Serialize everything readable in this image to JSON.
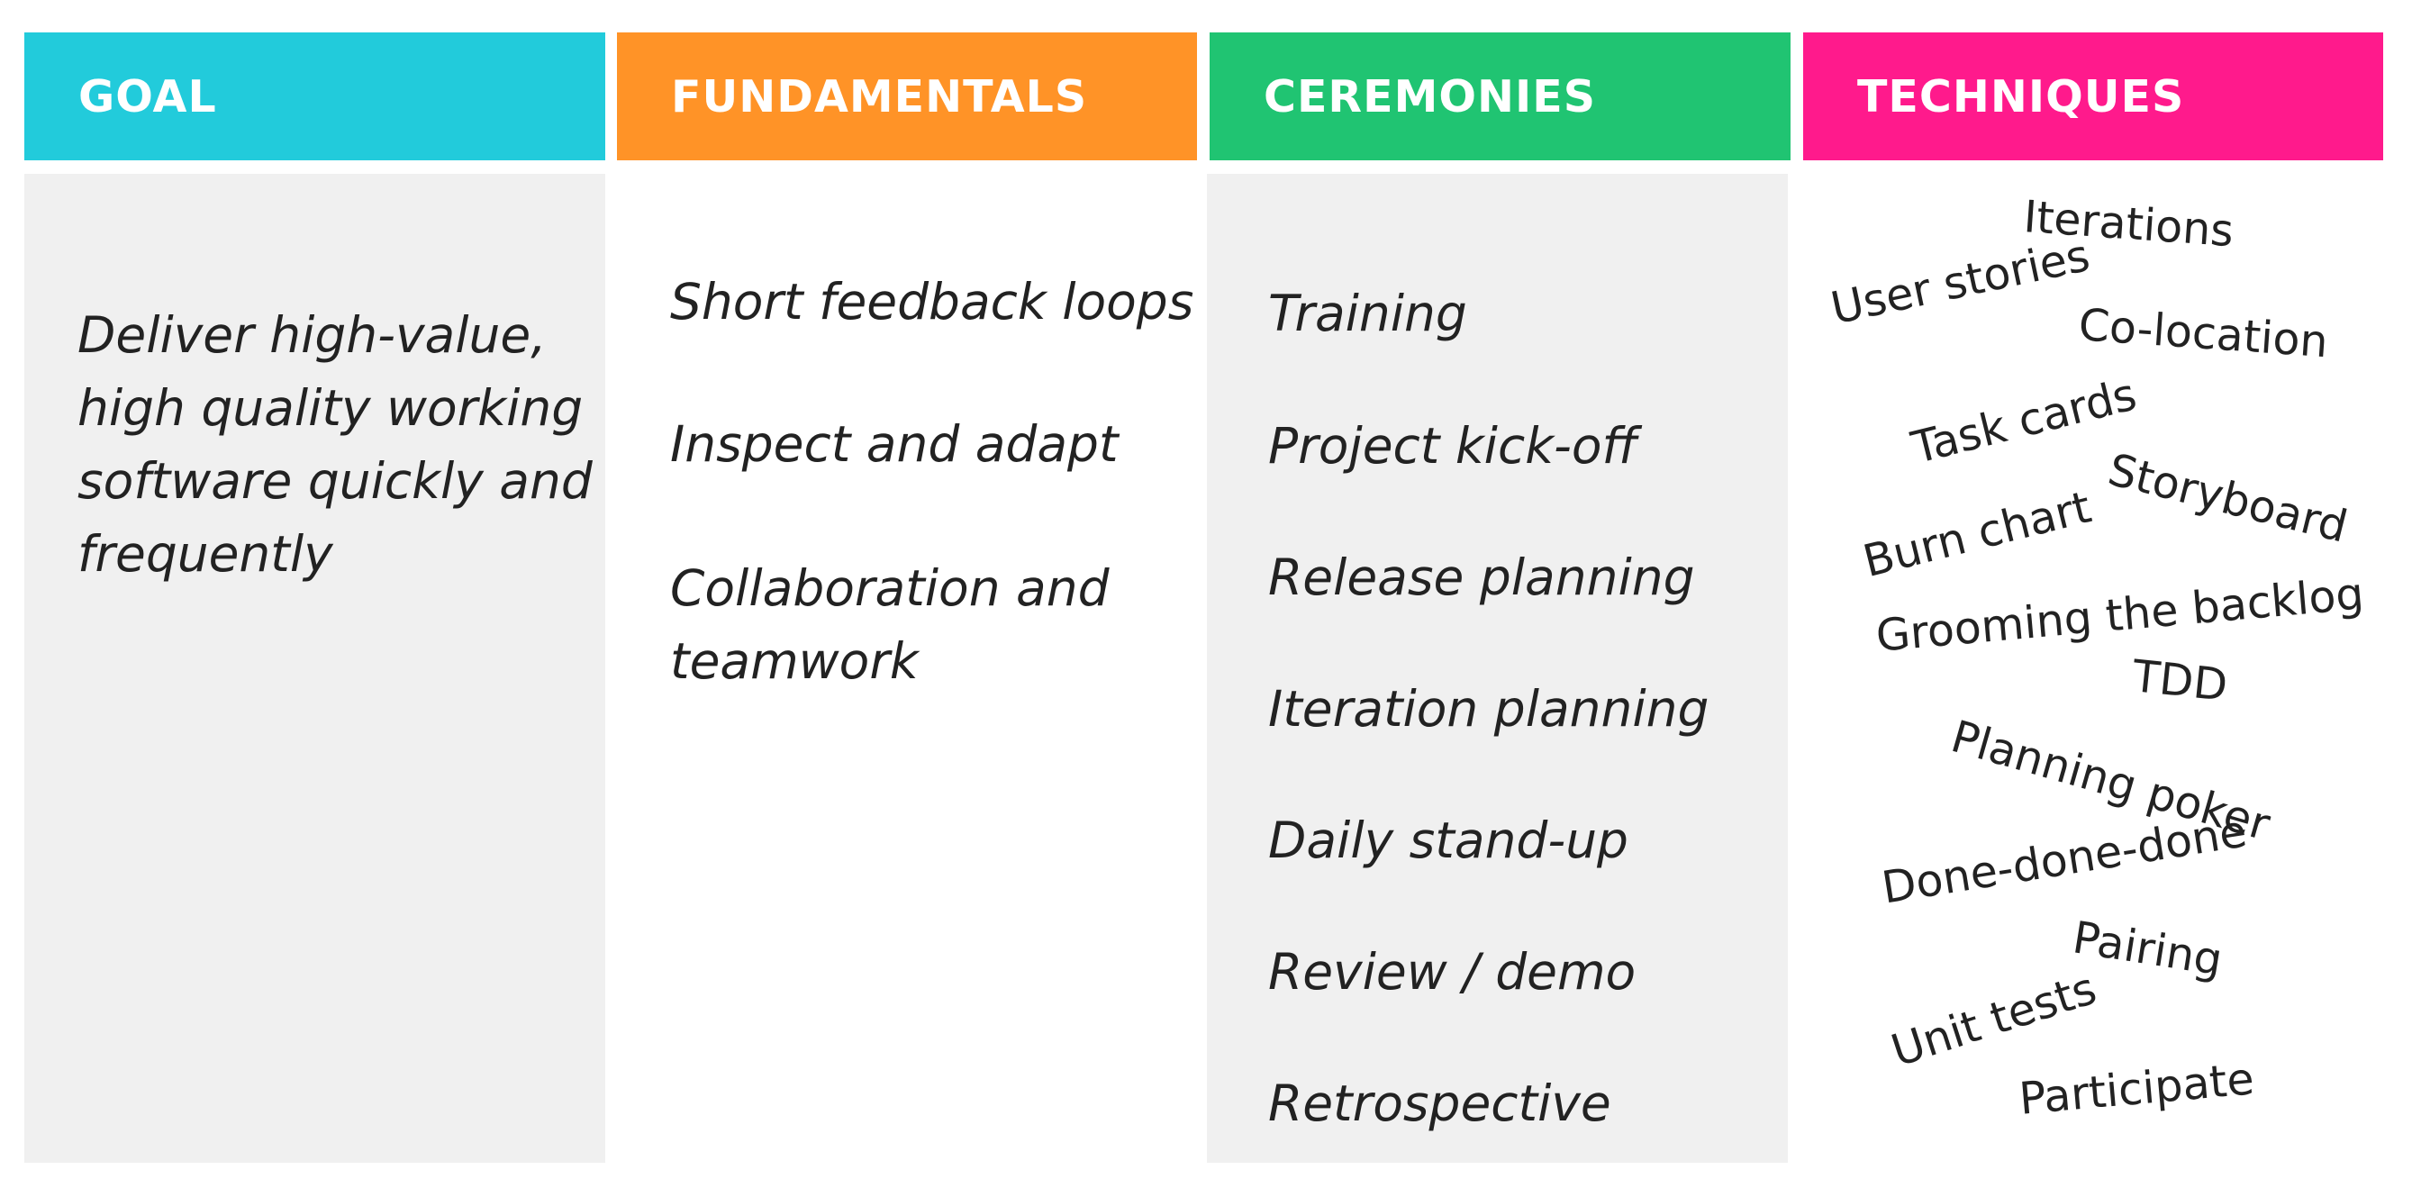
{
  "columns": {
    "goal": {
      "title": "GOAL",
      "color": "#22cbdb",
      "text": "Deliver high-value, high quality working software quickly and frequently"
    },
    "fundamentals": {
      "title": "FUNDAMENTALS",
      "color": "#ff9327",
      "items": [
        "Short feedback loops",
        "Inspect and adapt",
        "Collaboration and teamwork"
      ]
    },
    "ceremonies": {
      "title": "CEREMONIES",
      "color": "#20c472",
      "items": [
        "Training",
        "Project kick-off",
        "Release planning",
        "Iteration planning",
        "Daily stand-up",
        "Review / demo",
        "Retrospective"
      ]
    },
    "techniques": {
      "title": "TECHNIQUES",
      "color": "#ff1a8c",
      "items": [
        "Iterations",
        "User stories",
        "Co-location",
        "Task cards",
        "Storyboard",
        "Burn chart",
        "Grooming the backlog",
        "TDD",
        "Planning poker",
        "Done-done-done",
        "Pairing",
        "Unit tests",
        "Participate"
      ]
    }
  }
}
